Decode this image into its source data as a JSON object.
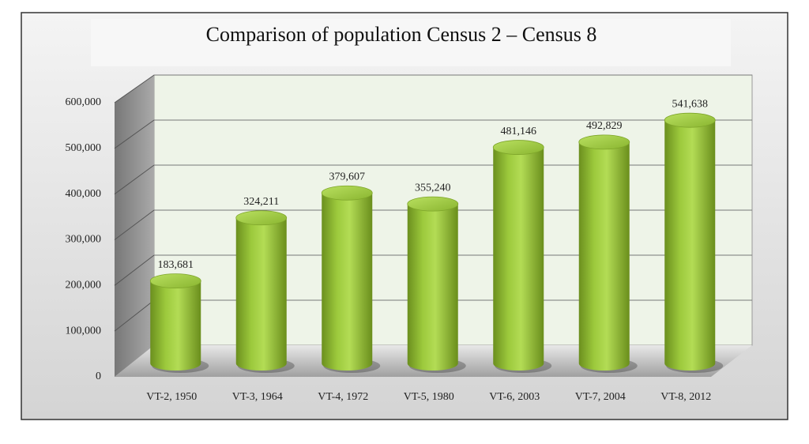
{
  "chart_data": {
    "type": "bar3d-cylinder",
    "title": "Comparison of population Census 2 – Census 8",
    "categories": [
      "VT-2, 1950",
      "VT-3, 1964",
      "VT-4, 1972",
      "VT-5, 1980",
      "VT-6, 2003",
      "VT-7, 2004",
      "VT-8, 2012"
    ],
    "values": [
      183681,
      324211,
      379607,
      355240,
      481146,
      492829,
      541638
    ],
    "value_labels": [
      "183,681",
      "324,211",
      "379,607",
      "355,240",
      "481,146",
      "492,829",
      "541,638"
    ],
    "color": "#8dbb32",
    "ylim": [
      0,
      600000
    ],
    "yticks": [
      0,
      {
        "value": 100000,
        "label": "100,000"
      },
      {
        "value": 200000,
        "label": "200,000"
      },
      {
        "value": 300000,
        "label": "300,000"
      },
      {
        "value": 400000,
        "label": "400,000"
      },
      {
        "value": 500000,
        "label": "500,000"
      },
      {
        "value": 600000,
        "label": "600,000"
      }
    ],
    "grid": true
  }
}
